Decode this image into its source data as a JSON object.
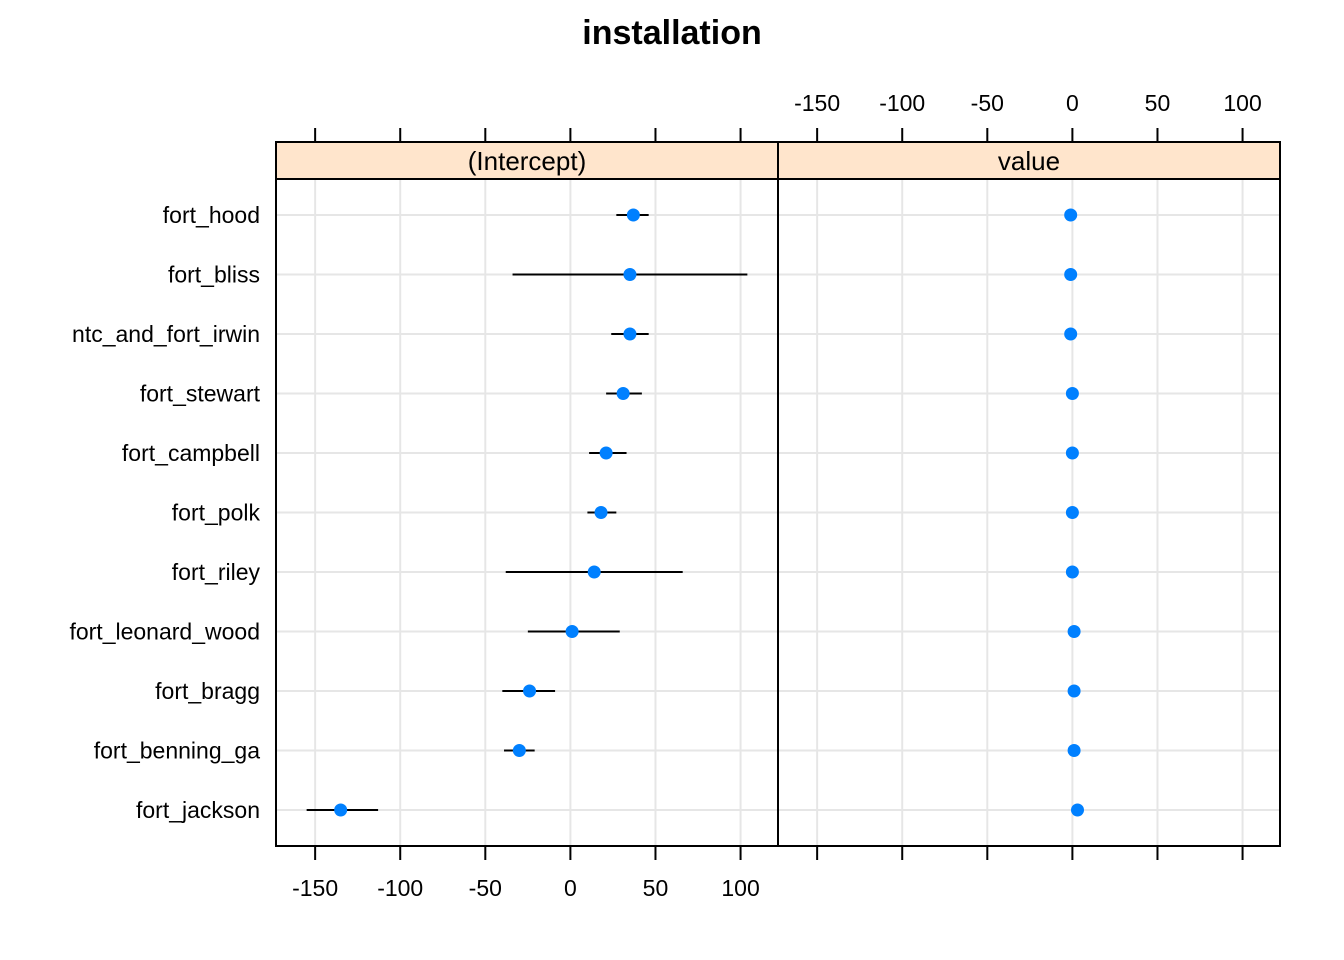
{
  "chart_data": {
    "type": "dotplot",
    "title": "installation",
    "categories": [
      "fort_hood",
      "fort_bliss",
      "ntc_and_fort_irwin",
      "fort_stewart",
      "fort_campbell",
      "fort_polk",
      "fort_riley",
      "fort_leonard_wood",
      "fort_bragg",
      "fort_benning_ga",
      "fort_jackson"
    ],
    "x_range": [
      -150,
      100
    ],
    "xlim": [
      -173,
      122
    ],
    "ticks": [
      -150,
      -100,
      -50,
      0,
      50,
      100
    ],
    "tick_labels": [
      "-150",
      "-100",
      "-50",
      "0",
      "50",
      "100"
    ],
    "grid": true,
    "point_color": "#0080ff",
    "panels": [
      {
        "name": "(Intercept)",
        "estimates": [
          37,
          35,
          35,
          31,
          21,
          18,
          14,
          1,
          -24,
          -30,
          -135
        ],
        "lower": [
          27,
          -34,
          24,
          21,
          11,
          10,
          -38,
          -25,
          -40,
          -39,
          -155
        ],
        "upper": [
          46,
          104,
          46,
          42,
          33,
          27,
          66,
          29,
          -9,
          -21,
          -113
        ]
      },
      {
        "name": "value",
        "estimates": [
          -1,
          -1,
          -1,
          0,
          0,
          0,
          0,
          1,
          1,
          1,
          3
        ],
        "lower": [
          -1,
          -1,
          -1,
          0,
          0,
          0,
          0,
          1,
          1,
          1,
          3
        ],
        "upper": [
          -1,
          -1,
          -1,
          0,
          0,
          0,
          0,
          1,
          1,
          1,
          3
        ]
      }
    ]
  }
}
